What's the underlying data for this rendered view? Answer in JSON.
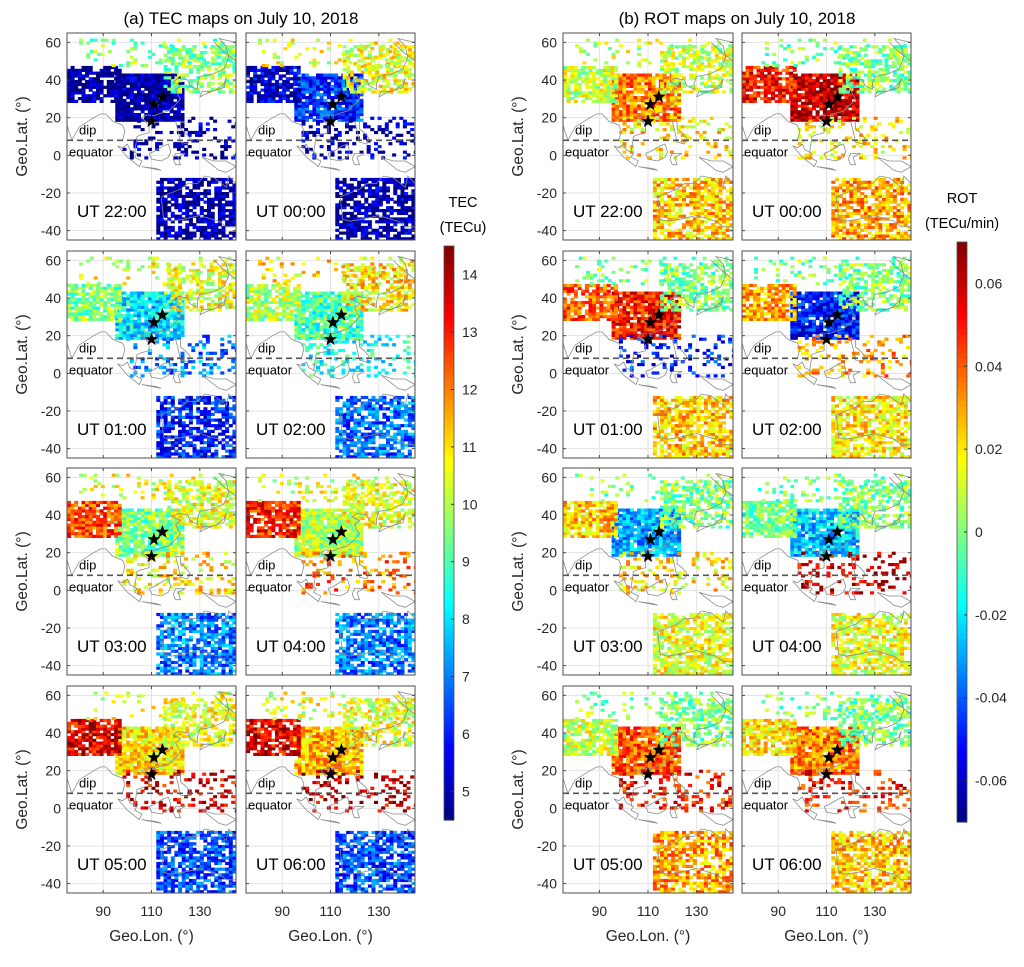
{
  "chart_data": [
    {
      "type": "heatmap",
      "title": "(a) TEC maps on July 10, 2018",
      "xlabel": "Geo.Lon. (°)",
      "ylabel": "Geo.Lat. (°)",
      "xlim": [
        75,
        145
      ],
      "ylim": [
        -45,
        65
      ],
      "xticks": [
        90,
        110,
        130
      ],
      "yticks": [
        -40,
        -20,
        0,
        20,
        40,
        60
      ],
      "grid": true,
      "colorbar": {
        "label_line1": "TEC",
        "label_line2": "(TECu)",
        "range": [
          4.5,
          14.5
        ],
        "ticks": [
          5,
          6,
          7,
          8,
          9,
          10,
          11,
          12,
          13,
          14
        ],
        "colormap": "jet"
      },
      "annotation_dip": "dip",
      "annotation_equator": "equator",
      "dip_equator_lat": 8,
      "stars": [
        {
          "lon": 110,
          "lat": 18
        },
        {
          "lon": 111,
          "lat": 27
        },
        {
          "lon": 114.5,
          "lat": 31
        }
      ],
      "panels": [
        {
          "label": "UT 22:00",
          "regions": {
            "china": 4.8,
            "india_west": 4.8,
            "northeast": 9.5,
            "southeast_asia": 4.8,
            "australia": 4.8
          }
        },
        {
          "label": "UT 00:00",
          "regions": {
            "china": 6.2,
            "india_west": 5.2,
            "northeast": 10.5,
            "southeast_asia": 5.0,
            "australia": 4.9
          }
        },
        {
          "label": "UT 01:00",
          "regions": {
            "china": 8.0,
            "india_west": 9.5,
            "northeast": 10.5,
            "southeast_asia": 7.0,
            "australia": 6.0
          }
        },
        {
          "label": "UT 02:00",
          "regions": {
            "china": 9.0,
            "india_west": 10.0,
            "northeast": 11.0,
            "southeast_asia": 8.5,
            "australia": 6.8
          }
        },
        {
          "label": "UT 03:00",
          "regions": {
            "china": 9.5,
            "india_west": 12.5,
            "northeast": 10.5,
            "southeast_asia": 11.0,
            "australia": 7.0
          }
        },
        {
          "label": "UT 04:00",
          "regions": {
            "china": 10.0,
            "india_west": 13.0,
            "northeast": 10.5,
            "southeast_asia": 12.0,
            "australia": 7.0
          }
        },
        {
          "label": "UT 05:00",
          "regions": {
            "china": 11.0,
            "india_west": 13.5,
            "northeast": 10.5,
            "southeast_asia": 13.5,
            "australia": 6.5
          }
        },
        {
          "label": "UT 06:00",
          "regions": {
            "china": 11.5,
            "india_west": 13.5,
            "northeast": 10.5,
            "southeast_asia": 13.8,
            "australia": 6.5
          }
        }
      ]
    },
    {
      "type": "heatmap",
      "title": "(b) ROT maps on July 10, 2018",
      "xlabel": "Geo.Lon. (°)",
      "ylabel": "Geo.Lat. (°)",
      "xlim": [
        75,
        145
      ],
      "ylim": [
        -45,
        65
      ],
      "xticks": [
        90,
        110,
        130
      ],
      "yticks": [
        -40,
        -20,
        0,
        20,
        40,
        60
      ],
      "grid": true,
      "colorbar": {
        "label_line1": "ROT",
        "label_line2": "(TECu/min)",
        "range": [
          -0.07,
          0.07
        ],
        "ticks": [
          -0.06,
          -0.04,
          -0.02,
          0,
          0.02,
          0.04,
          0.06
        ],
        "colormap": "jet"
      },
      "annotation_dip": "dip",
      "annotation_equator": "equator",
      "dip_equator_lat": 8,
      "stars": [
        {
          "lon": 110,
          "lat": 18
        },
        {
          "lon": 111,
          "lat": 27
        },
        {
          "lon": 114.5,
          "lat": 31
        }
      ],
      "panels": [
        {
          "label": "UT 22:00",
          "regions": {
            "china": 0.035,
            "india_west": 0.01,
            "northeast": 0.01,
            "southeast_asia": 0.02,
            "australia": 0.025
          }
        },
        {
          "label": "UT 00:00",
          "regions": {
            "china": 0.06,
            "india_west": 0.05,
            "northeast": 0.0,
            "southeast_asia": 0.02,
            "australia": 0.03
          }
        },
        {
          "label": "UT 01:00",
          "regions": {
            "china": 0.05,
            "india_west": 0.04,
            "northeast": 0.0,
            "southeast_asia": -0.05,
            "australia": 0.025
          }
        },
        {
          "label": "UT 02:00",
          "regions": {
            "china": -0.05,
            "india_west": 0.03,
            "northeast": 0.0,
            "southeast_asia": 0.03,
            "australia": 0.02
          }
        },
        {
          "label": "UT 03:00",
          "regions": {
            "china": -0.03,
            "india_west": 0.025,
            "northeast": 0.0,
            "southeast_asia": 0.02,
            "australia": 0.015
          }
        },
        {
          "label": "UT 04:00",
          "regions": {
            "china": -0.025,
            "india_west": 0.0,
            "northeast": 0.0,
            "southeast_asia": 0.06,
            "australia": 0.015
          }
        },
        {
          "label": "UT 05:00",
          "regions": {
            "china": 0.04,
            "india_west": 0.01,
            "northeast": 0.0,
            "southeast_asia": 0.05,
            "australia": 0.03
          }
        },
        {
          "label": "UT 06:00",
          "regions": {
            "china": 0.035,
            "india_west": 0.02,
            "northeast": 0.0,
            "southeast_asia": 0.05,
            "australia": 0.025
          }
        }
      ]
    }
  ]
}
